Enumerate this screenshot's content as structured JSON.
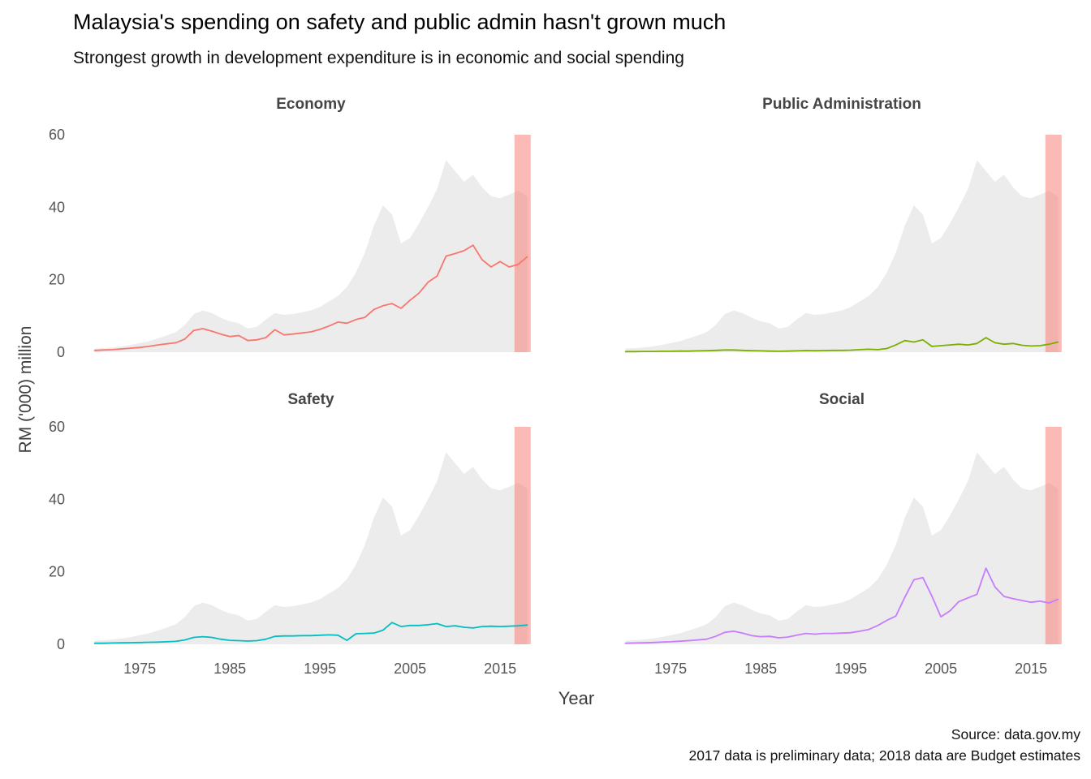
{
  "title": "Malaysia's spending on safety and public admin hasn't grown much",
  "subtitle": "Strongest growth in development expenditure is in economic and social spending",
  "axis": {
    "x_label": "Year",
    "y_label": "RM ('000) million"
  },
  "caption": {
    "line1": "Source: data.gov.my",
    "line2": "2017 data is preliminary data; 2018 data are Budget estimates"
  },
  "chart_data": {
    "type": "line",
    "facet_layout": "2x2",
    "xlim": [
      1970,
      2018
    ],
    "ylim": [
      0,
      60
    ],
    "x_ticks": [
      1975,
      1985,
      1995,
      2005,
      2015
    ],
    "y_ticks": [
      0,
      20,
      40,
      60
    ],
    "grid": "off",
    "x": [
      1970,
      1971,
      1972,
      1973,
      1974,
      1975,
      1976,
      1977,
      1978,
      1979,
      1980,
      1981,
      1982,
      1983,
      1984,
      1985,
      1986,
      1987,
      1988,
      1989,
      1990,
      1991,
      1992,
      1993,
      1994,
      1995,
      1996,
      1997,
      1998,
      1999,
      2000,
      2001,
      2002,
      2003,
      2004,
      2005,
      2006,
      2007,
      2008,
      2009,
      2010,
      2011,
      2012,
      2013,
      2014,
      2015,
      2016,
      2017,
      2018
    ],
    "background_area": {
      "color": "#ececec",
      "values": [
        1.0,
        1.1,
        1.3,
        1.6,
        2.0,
        2.5,
        3.0,
        3.8,
        4.6,
        5.5,
        7.5,
        10.5,
        11.5,
        10.8,
        9.5,
        8.5,
        8.0,
        6.5,
        7.0,
        9.0,
        10.8,
        10.3,
        10.5,
        11.0,
        11.5,
        12.5,
        14.0,
        15.5,
        18.0,
        22.0,
        27.5,
        35.0,
        40.5,
        38.0,
        30.0,
        31.5,
        35.5,
        40.0,
        45.0,
        53.0,
        50.0,
        47.0,
        49.0,
        45.5,
        43.0,
        42.5,
        43.5,
        44.5,
        43.0
      ]
    },
    "highlight_band": {
      "x_start": 2016.6,
      "x_end": 2018.4,
      "color": "#F8766D",
      "opacity": 0.5
    },
    "facets": [
      {
        "label": "Economy",
        "color": "#F8766D",
        "values": [
          0.5,
          0.6,
          0.7,
          0.9,
          1.1,
          1.3,
          1.6,
          2.0,
          2.3,
          2.6,
          3.6,
          6.0,
          6.5,
          5.8,
          5.0,
          4.3,
          4.6,
          3.2,
          3.4,
          4.0,
          6.2,
          4.8,
          5.0,
          5.3,
          5.6,
          6.3,
          7.2,
          8.3,
          8.0,
          9.0,
          9.6,
          11.8,
          12.8,
          13.4,
          12.1,
          14.3,
          16.3,
          19.3,
          21.0,
          26.5,
          27.2,
          28.0,
          29.5,
          25.5,
          23.5,
          25.0,
          23.5,
          24.2,
          26.3
        ]
      },
      {
        "label": "Public Administration",
        "color": "#7CAE00",
        "values": [
          0.15,
          0.15,
          0.2,
          0.2,
          0.25,
          0.25,
          0.3,
          0.3,
          0.35,
          0.4,
          0.5,
          0.6,
          0.6,
          0.5,
          0.4,
          0.35,
          0.3,
          0.25,
          0.3,
          0.35,
          0.45,
          0.4,
          0.45,
          0.5,
          0.5,
          0.55,
          0.7,
          0.8,
          0.7,
          1.0,
          2.0,
          3.2,
          2.8,
          3.4,
          1.6,
          1.8,
          2.0,
          2.2,
          2.0,
          2.4,
          4.0,
          2.6,
          2.2,
          2.4,
          1.9,
          1.7,
          1.8,
          2.2,
          2.8
        ]
      },
      {
        "label": "Safety",
        "color": "#00BFC4",
        "values": [
          0.3,
          0.3,
          0.35,
          0.4,
          0.45,
          0.5,
          0.55,
          0.6,
          0.7,
          0.8,
          1.2,
          1.9,
          2.1,
          1.9,
          1.4,
          1.1,
          1.0,
          0.9,
          1.0,
          1.4,
          2.2,
          2.3,
          2.3,
          2.4,
          2.4,
          2.5,
          2.6,
          2.5,
          1.1,
          2.9,
          3.0,
          3.1,
          3.9,
          6.0,
          4.9,
          5.2,
          5.2,
          5.4,
          5.7,
          4.9,
          5.1,
          4.7,
          4.5,
          4.9,
          5.0,
          4.9,
          5.0,
          5.1,
          5.3
        ]
      },
      {
        "label": "Social",
        "color": "#C77CFF",
        "values": [
          0.3,
          0.35,
          0.4,
          0.5,
          0.6,
          0.7,
          0.85,
          1.0,
          1.2,
          1.4,
          2.2,
          3.3,
          3.6,
          3.1,
          2.4,
          2.1,
          2.2,
          1.8,
          2.0,
          2.5,
          3.0,
          2.8,
          3.0,
          3.0,
          3.1,
          3.2,
          3.6,
          4.1,
          5.2,
          6.6,
          7.8,
          13.0,
          17.8,
          18.4,
          13.3,
          7.6,
          9.2,
          11.8,
          12.8,
          13.8,
          21.0,
          15.8,
          13.2,
          12.6,
          12.1,
          11.6,
          11.9,
          11.4,
          12.4
        ]
      }
    ]
  }
}
